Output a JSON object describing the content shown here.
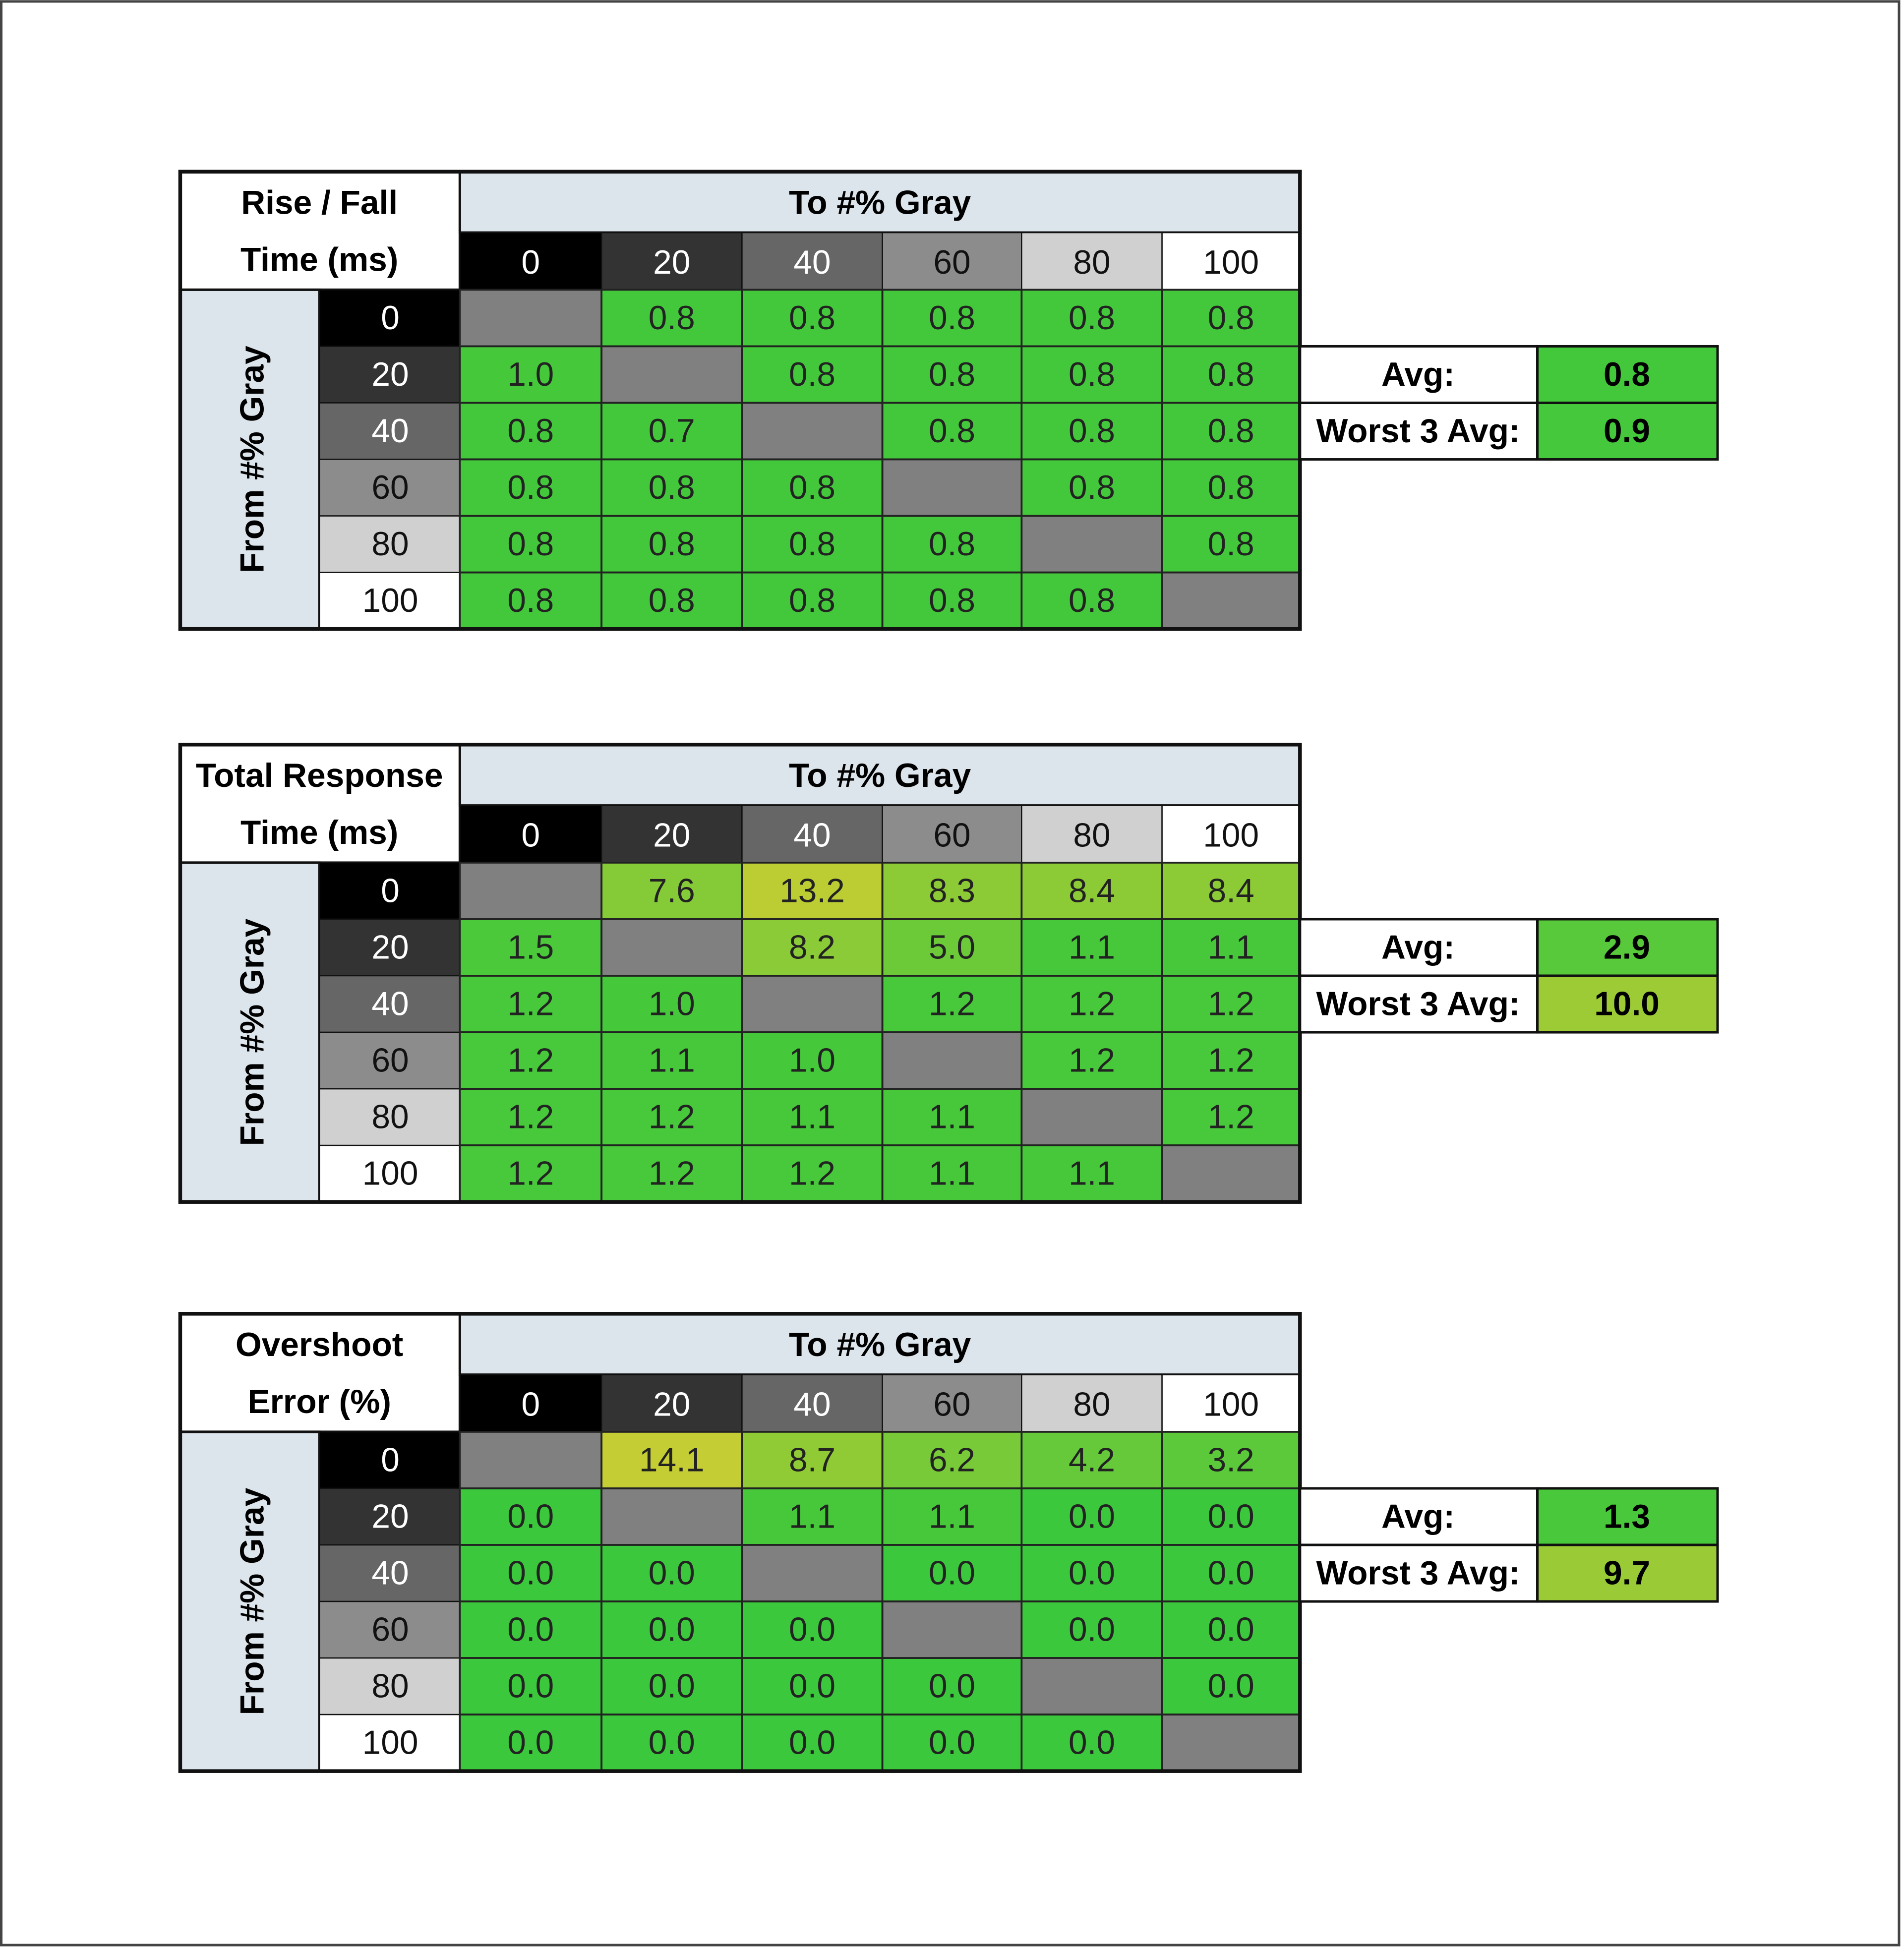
{
  "tables": [
    {
      "title": [
        "Rise / Fall",
        "Time (ms)"
      ],
      "column_header": "To #% Gray",
      "row_header": "From #% Gray",
      "columns": [
        "0",
        "20",
        "40",
        "60",
        "80",
        "100"
      ],
      "rows": [
        {
          "label": "0",
          "cells": [
            null,
            "0.8",
            "0.8",
            "0.8",
            "0.8",
            "0.8"
          ]
        },
        {
          "label": "20",
          "cells": [
            "1.0",
            null,
            "0.8",
            "0.8",
            "0.8",
            "0.8"
          ]
        },
        {
          "label": "40",
          "cells": [
            "0.8",
            "0.7",
            null,
            "0.8",
            "0.8",
            "0.8"
          ]
        },
        {
          "label": "60",
          "cells": [
            "0.8",
            "0.8",
            "0.8",
            null,
            "0.8",
            "0.8"
          ]
        },
        {
          "label": "80",
          "cells": [
            "0.8",
            "0.8",
            "0.8",
            "0.8",
            null,
            "0.8"
          ]
        },
        {
          "label": "100",
          "cells": [
            "0.8",
            "0.8",
            "0.8",
            "0.8",
            "0.8",
            null
          ]
        }
      ],
      "summary": [
        {
          "label": "Avg:",
          "value": "0.8"
        },
        {
          "label": "Worst 3 Avg:",
          "value": "0.9"
        }
      ]
    },
    {
      "title": [
        "Total Response",
        "Time (ms)"
      ],
      "column_header": "To #% Gray",
      "row_header": "From #% Gray",
      "columns": [
        "0",
        "20",
        "40",
        "60",
        "80",
        "100"
      ],
      "rows": [
        {
          "label": "0",
          "cells": [
            null,
            "7.6",
            "13.2",
            "8.3",
            "8.4",
            "8.4"
          ]
        },
        {
          "label": "20",
          "cells": [
            "1.5",
            null,
            "8.2",
            "5.0",
            "1.1",
            "1.1"
          ]
        },
        {
          "label": "40",
          "cells": [
            "1.2",
            "1.0",
            null,
            "1.2",
            "1.2",
            "1.2"
          ]
        },
        {
          "label": "60",
          "cells": [
            "1.2",
            "1.1",
            "1.0",
            null,
            "1.2",
            "1.2"
          ]
        },
        {
          "label": "80",
          "cells": [
            "1.2",
            "1.2",
            "1.1",
            "1.1",
            null,
            "1.2"
          ]
        },
        {
          "label": "100",
          "cells": [
            "1.2",
            "1.2",
            "1.2",
            "1.1",
            "1.1",
            null
          ]
        }
      ],
      "summary": [
        {
          "label": "Avg:",
          "value": "2.9"
        },
        {
          "label": "Worst 3 Avg:",
          "value": "10.0"
        }
      ]
    },
    {
      "title": [
        "Overshoot",
        "Error (%)"
      ],
      "column_header": "To #% Gray",
      "row_header": "From #% Gray",
      "columns": [
        "0",
        "20",
        "40",
        "60",
        "80",
        "100"
      ],
      "rows": [
        {
          "label": "0",
          "cells": [
            null,
            "14.1",
            "8.7",
            "6.2",
            "4.2",
            "3.2"
          ]
        },
        {
          "label": "20",
          "cells": [
            "0.0",
            null,
            "1.1",
            "1.1",
            "0.0",
            "0.0"
          ]
        },
        {
          "label": "40",
          "cells": [
            "0.0",
            "0.0",
            null,
            "0.0",
            "0.0",
            "0.0"
          ]
        },
        {
          "label": "60",
          "cells": [
            "0.0",
            "0.0",
            "0.0",
            null,
            "0.0",
            "0.0"
          ]
        },
        {
          "label": "80",
          "cells": [
            "0.0",
            "0.0",
            "0.0",
            "0.0",
            null,
            "0.0"
          ]
        },
        {
          "label": "100",
          "cells": [
            "0.0",
            "0.0",
            "0.0",
            "0.0",
            "0.0",
            null
          ]
        }
      ],
      "summary": [
        {
          "label": "Avg:",
          "value": "1.3"
        },
        {
          "label": "Worst 3 Avg:",
          "value": "9.7"
        }
      ]
    }
  ]
}
